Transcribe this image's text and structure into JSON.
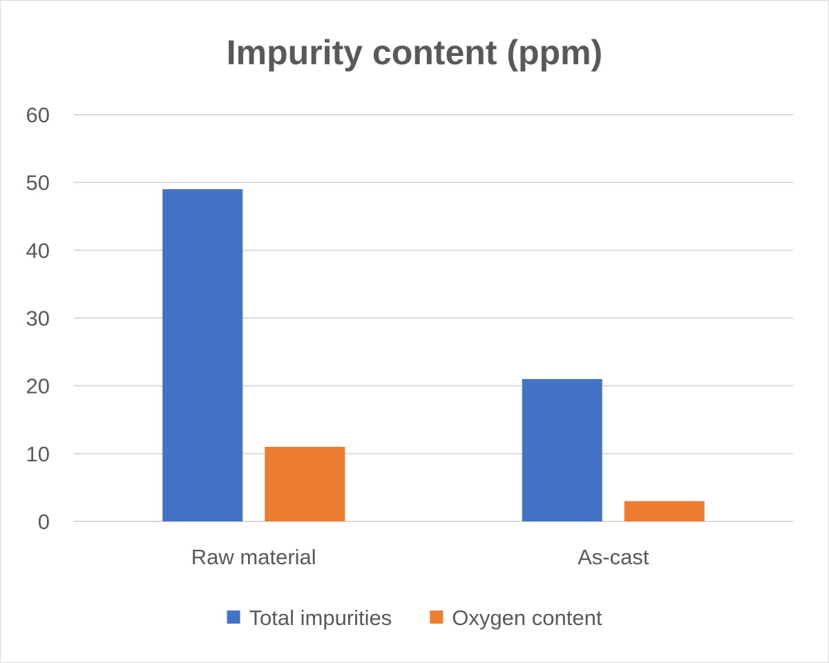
{
  "chart_data": {
    "type": "bar",
    "title": "Impurity content (ppm)",
    "categories": [
      "Raw material",
      "As-cast"
    ],
    "series": [
      {
        "name": "Total impurities",
        "color": "#4472c4",
        "values": [
          49,
          21
        ]
      },
      {
        "name": "Oxygen content",
        "color": "#ed7d31",
        "values": [
          11,
          3
        ]
      }
    ],
    "ylim": [
      0,
      60
    ],
    "yticks": [
      0,
      10,
      20,
      30,
      40,
      50,
      60
    ],
    "grid": true,
    "legend_position": "bottom"
  }
}
